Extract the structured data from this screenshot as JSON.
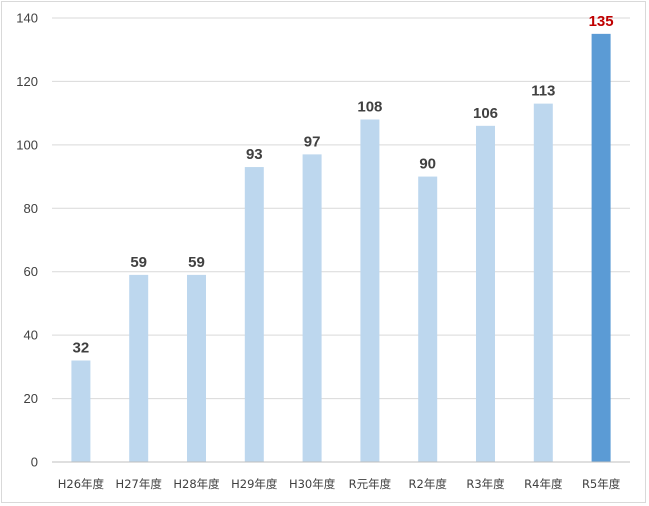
{
  "chart_data": {
    "type": "bar",
    "categories": [
      "H26年度",
      "H27年度",
      "H28年度",
      "H29年度",
      "H30年度",
      "R元年度",
      "R2年度",
      "R3年度",
      "R4年度",
      "R5年度"
    ],
    "values": [
      32,
      59,
      59,
      93,
      97,
      108,
      90,
      106,
      113,
      135
    ],
    "title": "",
    "xlabel": "",
    "ylabel": "",
    "ylim": [
      0,
      140
    ],
    "yticks": [
      0,
      20,
      40,
      60,
      80,
      100,
      120,
      140
    ],
    "grid": true,
    "legend": "none",
    "colors": {
      "bar": "#bdd7ee",
      "highlight_bar": "#5b9bd5",
      "label": "#404040",
      "highlight_label": "#c00000",
      "grid": "#d9d9d9",
      "axis": "#bfbfbf"
    },
    "highlight_index": 9
  }
}
